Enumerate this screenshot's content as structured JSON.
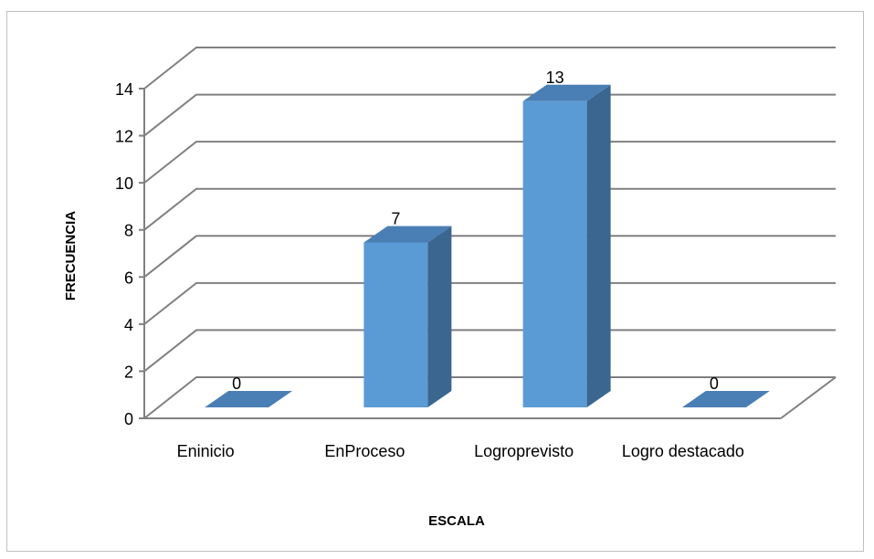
{
  "chart_data": {
    "type": "bar",
    "categories": [
      "Eninicio",
      "EnProceso",
      "Logroprevisto",
      "Logro destacado"
    ],
    "values": [
      0,
      7,
      13,
      0
    ],
    "data_labels": [
      "0",
      "7",
      "13",
      "0"
    ],
    "xlabel": "ESCALA",
    "ylabel": "FRECUENCIA",
    "ylim": [
      0,
      14
    ],
    "yticks": [
      0,
      2,
      4,
      6,
      8,
      10,
      12,
      14
    ],
    "grid": true,
    "style": "3d-column",
    "colors": {
      "bar_front": "#5b9bd5",
      "bar_side": "#3a6690",
      "bar_top": "#4a7fb5",
      "gridline": "#808080",
      "frame": "#bfbfbf"
    }
  }
}
